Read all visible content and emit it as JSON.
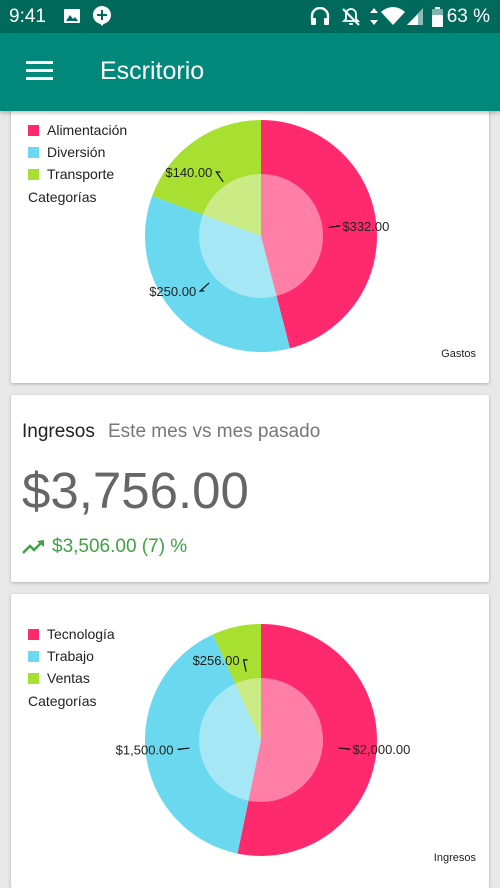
{
  "status_bar": {
    "time": "9:41",
    "battery_percent": "63 %",
    "icons": [
      "image-icon",
      "notification-plus-icon",
      "headphones-icon",
      "notifications-off-icon",
      "data-arrows-icon",
      "wifi-icon",
      "signal-icon",
      "battery-icon"
    ]
  },
  "app_bar": {
    "menu_icon": "hamburger-menu-icon",
    "title": "Escritorio",
    "background": "#00897b",
    "status_background": "#00695c"
  },
  "expenses_card": {
    "legend": [
      {
        "label": "Alimentación",
        "color": "#ff2a6d"
      },
      {
        "label": "Diversión",
        "color": "#6ad8ee"
      },
      {
        "label": "Transporte",
        "color": "#a8e032"
      }
    ],
    "legend_title": "Categorías",
    "corner_label": "Gastos"
  },
  "income_summary": {
    "title": "Ingresos",
    "subtitle": "Este mes vs mes pasado",
    "amount": "$3,756.00",
    "previous": "$3,506.00 (7) %",
    "trend_icon": "trending-up-icon",
    "trend_color": "#43a047"
  },
  "income_card": {
    "legend": [
      {
        "label": "Tecnología",
        "color": "#ff2a6d"
      },
      {
        "label": "Trabajo",
        "color": "#6ad8ee"
      },
      {
        "label": "Ventas",
        "color": "#a8e032"
      }
    ],
    "legend_title": "Categorías",
    "corner_label": "Ingresos"
  },
  "chart_data": [
    {
      "type": "pie",
      "categories": [
        "Alimentación",
        "Diversión",
        "Transporte"
      ],
      "values": [
        332,
        250,
        140
      ],
      "value_labels": [
        "$332.00",
        "$250.00",
        "$140.00"
      ],
      "colors": [
        "#ff2a6d",
        "#6ad8ee",
        "#a8e032"
      ],
      "legend_placement": "top-left",
      "title": ""
    },
    {
      "type": "pie",
      "categories": [
        "Tecnología",
        "Trabajo",
        "Ventas"
      ],
      "values": [
        2000,
        1500,
        256
      ],
      "value_labels": [
        "$2,000.00",
        "$1,500.00",
        "$256.00"
      ],
      "colors": [
        "#ff2a6d",
        "#6ad8ee",
        "#a8e032"
      ],
      "legend_placement": "top-left",
      "title": ""
    }
  ]
}
